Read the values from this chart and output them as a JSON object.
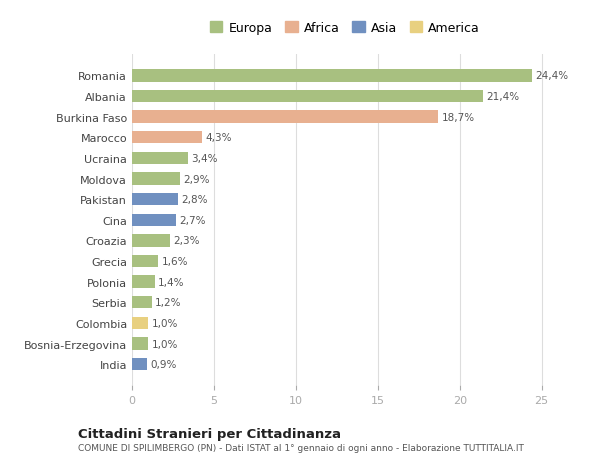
{
  "countries": [
    "Romania",
    "Albania",
    "Burkina Faso",
    "Marocco",
    "Ucraina",
    "Moldova",
    "Pakistan",
    "Cina",
    "Croazia",
    "Grecia",
    "Polonia",
    "Serbia",
    "Colombia",
    "Bosnia-Erzegovina",
    "India"
  ],
  "values": [
    24.4,
    21.4,
    18.7,
    4.3,
    3.4,
    2.9,
    2.8,
    2.7,
    2.3,
    1.6,
    1.4,
    1.2,
    1.0,
    1.0,
    0.9
  ],
  "labels": [
    "24,4%",
    "21,4%",
    "18,7%",
    "4,3%",
    "3,4%",
    "2,9%",
    "2,8%",
    "2,7%",
    "2,3%",
    "1,6%",
    "1,4%",
    "1,2%",
    "1,0%",
    "1,0%",
    "0,9%"
  ],
  "continents": [
    "Europa",
    "Europa",
    "Africa",
    "Africa",
    "Europa",
    "Europa",
    "Asia",
    "Asia",
    "Europa",
    "Europa",
    "Europa",
    "Europa",
    "America",
    "Europa",
    "Asia"
  ],
  "colors": {
    "Europa": "#a8c080",
    "Africa": "#e8b090",
    "Asia": "#7090c0",
    "America": "#e8d080"
  },
  "legend_order": [
    "Europa",
    "Africa",
    "Asia",
    "America"
  ],
  "title": "Cittadini Stranieri per Cittadinanza",
  "subtitle": "COMUNE DI SPILIMBERGO (PN) - Dati ISTAT al 1° gennaio di ogni anno - Elaborazione TUTTITALIA.IT",
  "xlim": [
    0,
    26
  ],
  "xticks": [
    0,
    5,
    10,
    15,
    20,
    25
  ],
  "background_color": "#ffffff",
  "grid_color": "#dddddd"
}
